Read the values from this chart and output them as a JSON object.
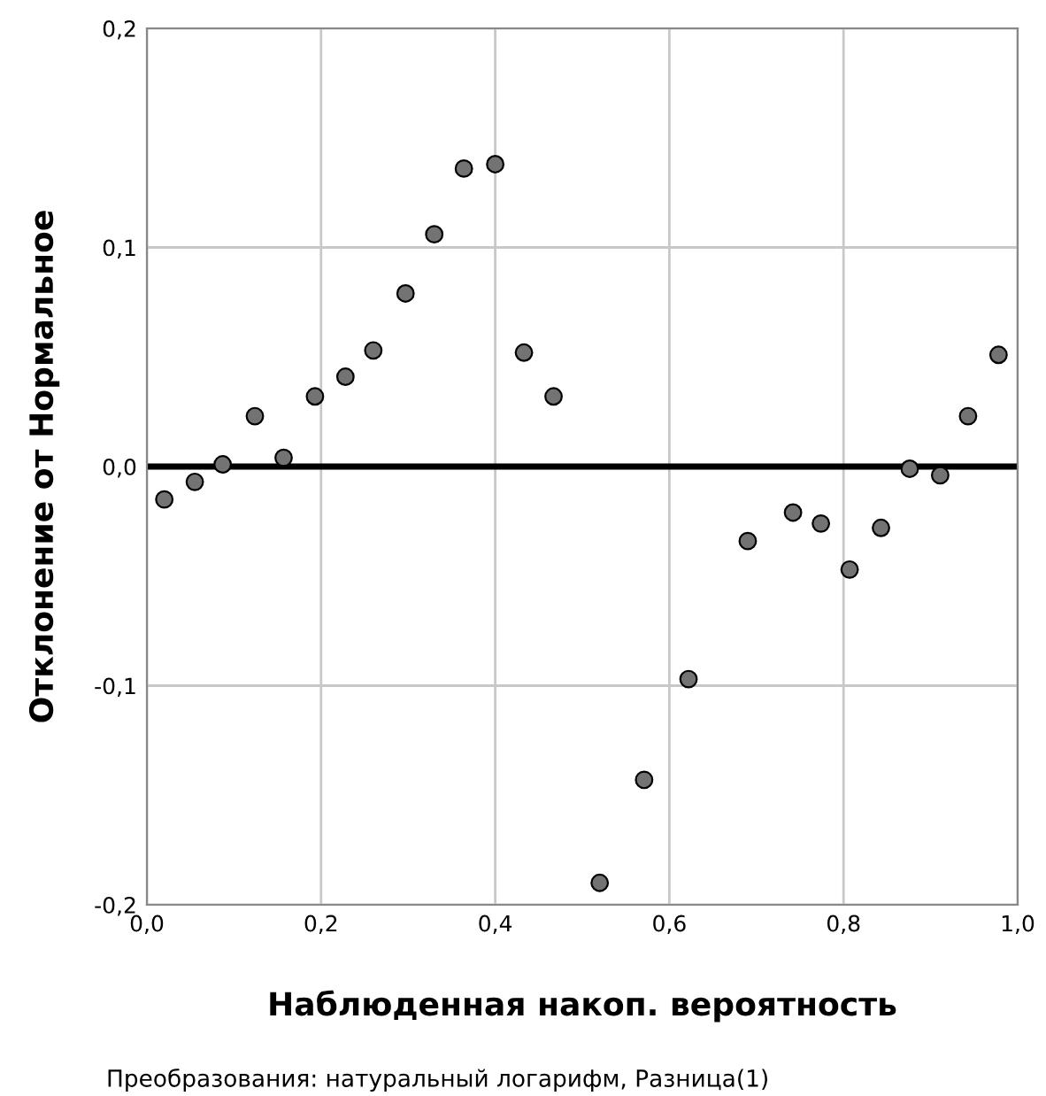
{
  "chart_data": {
    "type": "scatter",
    "xlabel": "Наблюденная накоп. вероятность",
    "ylabel": "Отклонение от Нормальное",
    "annotations": [
      "Преобразования: натуральный логарифм, Разница(1)"
    ],
    "series": [
      {
        "color": "#737373",
        "x": [
          0.02,
          0.055,
          0.087,
          0.124,
          0.157,
          0.193,
          0.228,
          0.26,
          0.297,
          0.33,
          0.364,
          0.4,
          0.433,
          0.467,
          0.52,
          0.571,
          0.622,
          0.69,
          0.742,
          0.774,
          0.807,
          0.843,
          0.876,
          0.911,
          0.943,
          0.978
        ],
        "values": [
          -0.015,
          -0.007,
          0.001,
          0.023,
          0.004,
          0.032,
          0.041,
          0.053,
          0.079,
          0.106,
          0.136,
          0.138,
          0.052,
          0.032,
          -0.19,
          -0.143,
          -0.097,
          -0.034,
          -0.021,
          -0.026,
          -0.047,
          -0.028,
          -0.001,
          -0.004,
          0.023,
          0.051
        ]
      }
    ],
    "xlim": [
      0,
      1
    ],
    "ylim": [
      -0.2,
      0.2
    ],
    "xticks": [
      {
        "value": 0,
        "label": "0,0"
      },
      {
        "value": 0.2,
        "label": "0,2"
      },
      {
        "value": 0.4,
        "label": "0,4"
      },
      {
        "value": 0.6,
        "label": "0,6"
      },
      {
        "value": 0.8,
        "label": "0,8"
      },
      {
        "value": 1,
        "label": "1,0"
      }
    ],
    "yticks": [
      {
        "value": -0.2,
        "label": "-0,2"
      },
      {
        "value": -0.1,
        "label": "-0,1"
      },
      {
        "value": 0,
        "label": "0,0"
      },
      {
        "value": 0.1,
        "label": "0,1"
      },
      {
        "value": 0.2,
        "label": "0,2"
      }
    ],
    "ref_lines": [
      {
        "axis": "y",
        "value": 0,
        "color": "#000000"
      }
    ],
    "grid": true,
    "marker": "circle"
  }
}
